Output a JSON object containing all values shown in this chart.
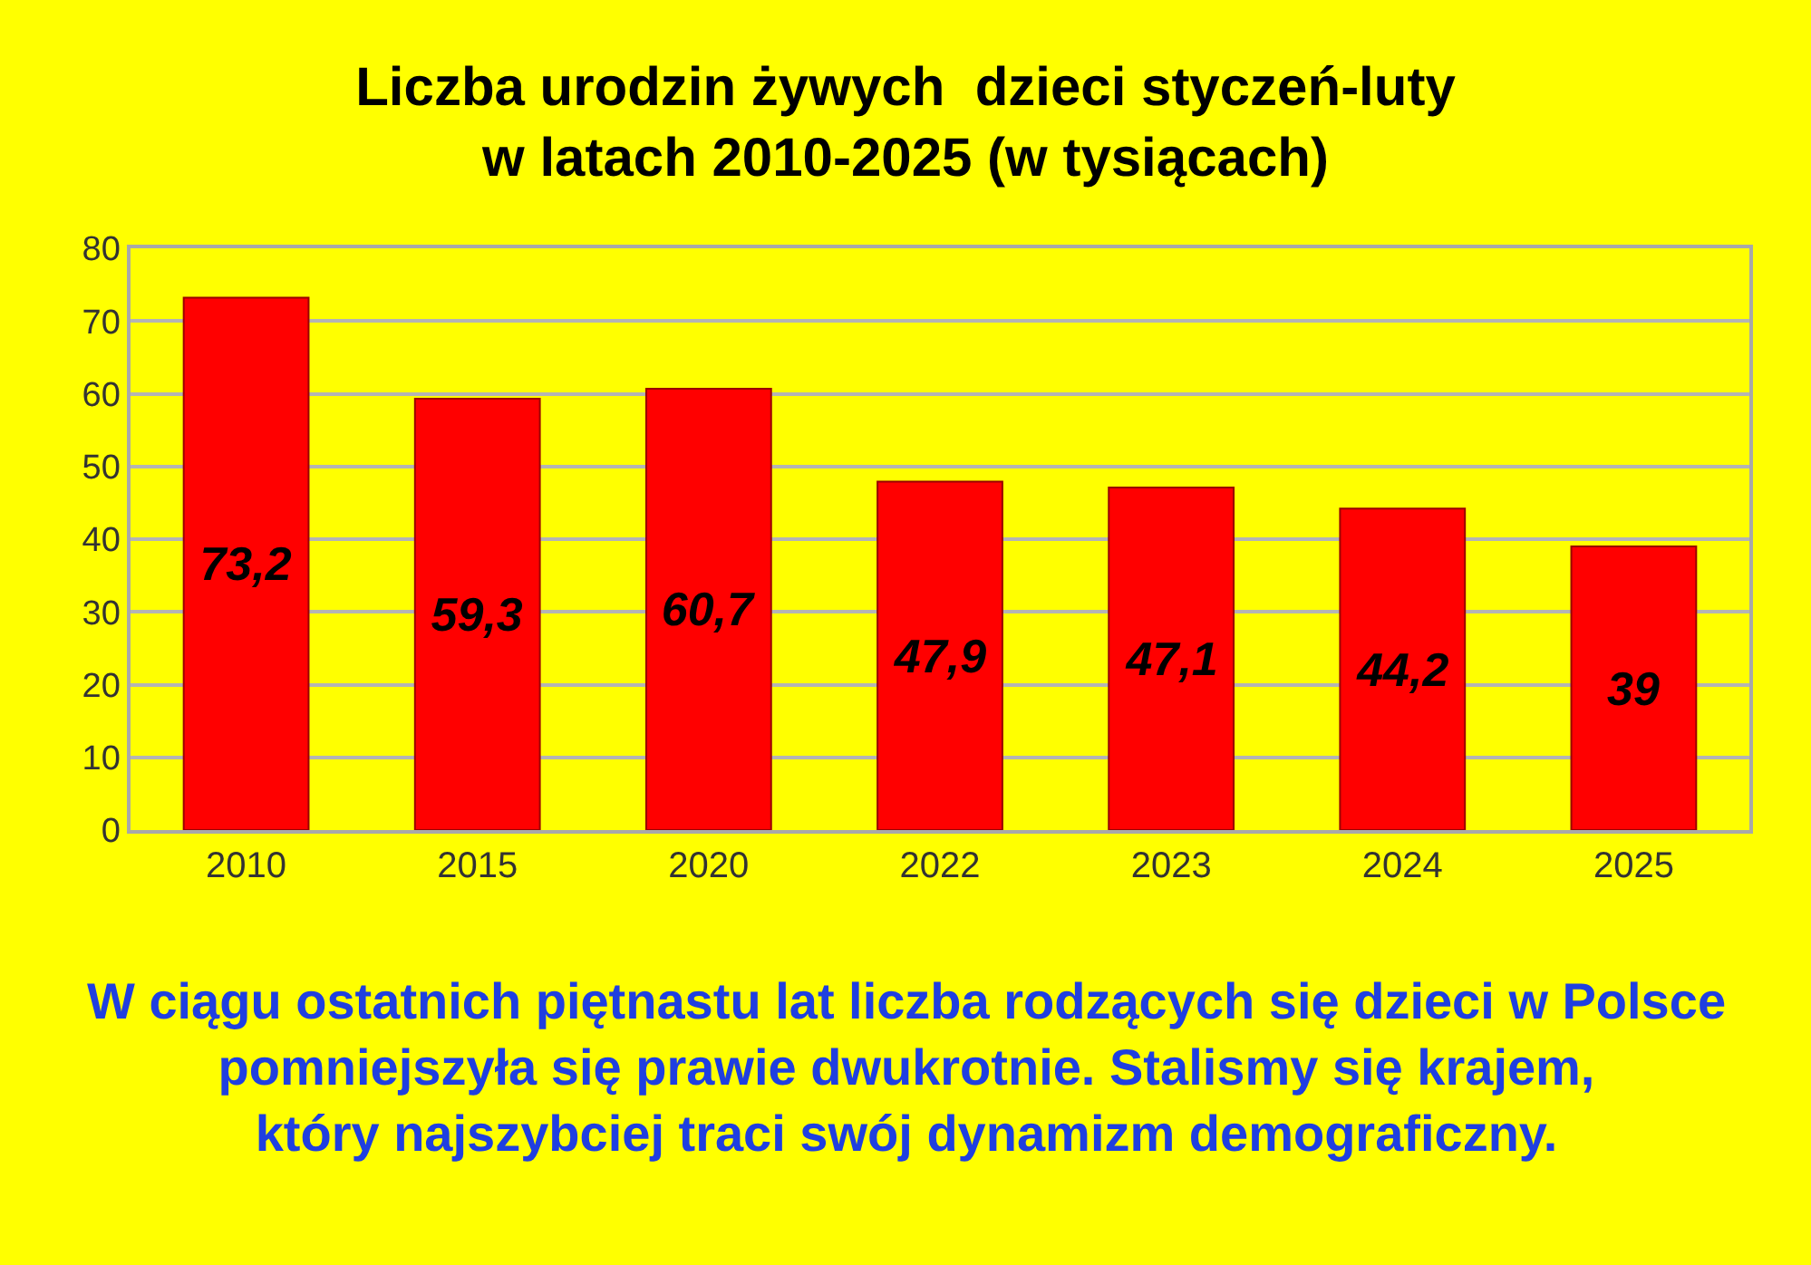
{
  "chart_data": {
    "type": "bar",
    "title": "Liczba urodzin żywych  dzieci styczeń-luty\nw latach 2010-2025 (w tysiącach)",
    "categories": [
      "2010",
      "2015",
      "2020",
      "2022",
      "2023",
      "2024",
      "2025"
    ],
    "values": [
      73.2,
      59.3,
      60.7,
      47.9,
      47.1,
      44.2,
      39
    ],
    "value_labels": [
      "73,2",
      "59,3",
      "60,7",
      "47,9",
      "47,1",
      "44,2",
      "39"
    ],
    "color": "#ff0000",
    "ylim": [
      0,
      80
    ],
    "yticks": [
      0,
      10,
      20,
      30,
      40,
      50,
      60,
      70,
      80
    ],
    "grid": "y",
    "annotations": [
      "W ciągu ostatnich piętnastu lat liczba rodzących się dzieci w Polsce\npomniejszyła się prawie dwukrotnie. Stalismy się krajem,\nktóry najszybciej traci swój dynamizm demograficzny."
    ]
  }
}
